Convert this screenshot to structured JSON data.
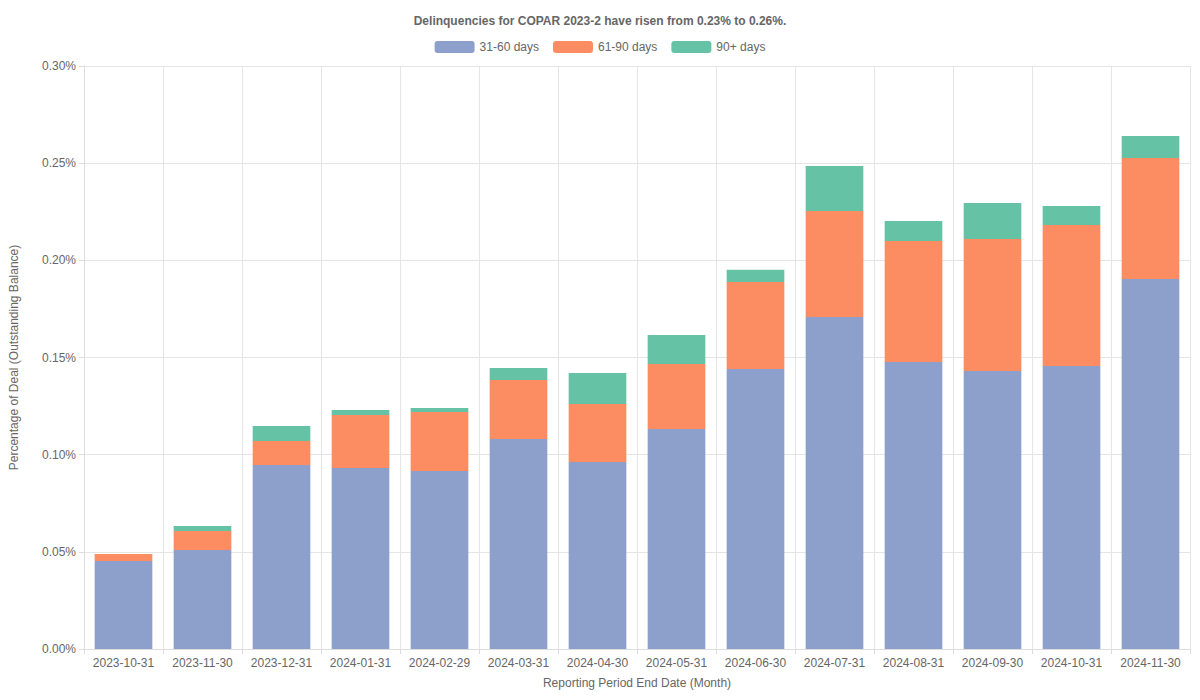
{
  "chart_data": {
    "type": "bar",
    "title": "Delinquencies for COPAR 2023-2 have risen from 0.23% to 0.26%.",
    "x_label": "Reporting Period End Date (Month)",
    "y_label": "Percentage of Deal (Outstanding Balance)",
    "categories": [
      "2023-10-31",
      "2023-11-30",
      "2023-12-31",
      "2024-01-31",
      "2024-02-29",
      "2024-03-31",
      "2024-04-30",
      "2024-05-31",
      "2024-06-30",
      "2024-07-31",
      "2024-08-31",
      "2024-09-30",
      "2024-10-31",
      "2024-11-30"
    ],
    "series": [
      {
        "name": "31-60 days",
        "color": "#8da0cb",
        "values": [
          0.0453,
          0.051,
          0.0947,
          0.0932,
          0.0916,
          0.1081,
          0.0962,
          0.1132,
          0.1441,
          0.1709,
          0.1477,
          0.1431,
          0.1456,
          0.1904
        ]
      },
      {
        "name": "61-90 days",
        "color": "#fc8d62",
        "values": [
          0.0036,
          0.0097,
          0.0123,
          0.0272,
          0.0304,
          0.0303,
          0.0299,
          0.0335,
          0.0448,
          0.0545,
          0.0623,
          0.0679,
          0.0726,
          0.0623
        ]
      },
      {
        "name": "90+ days",
        "color": "#66c2a5",
        "values": [
          0,
          0.0026,
          0.0078,
          0.0026,
          0.002,
          0.0062,
          0.0159,
          0.0149,
          0.0062,
          0.0232,
          0.0103,
          0.0185,
          0.0098,
          0.0113
        ]
      }
    ],
    "ylim": [
      0,
      0.3
    ],
    "yticks": [
      {
        "value": 0,
        "label": "0.00%"
      },
      {
        "value": 0.05,
        "label": "0.05%"
      },
      {
        "value": 0.1,
        "label": "0.10%"
      },
      {
        "value": 0.15,
        "label": "0.15%"
      },
      {
        "value": 0.2,
        "label": "0.20%"
      },
      {
        "value": 0.25,
        "label": "0.25%"
      },
      {
        "value": 0.3,
        "label": "0.30%"
      }
    ],
    "stacked": true,
    "grid": true,
    "legend": "top"
  }
}
